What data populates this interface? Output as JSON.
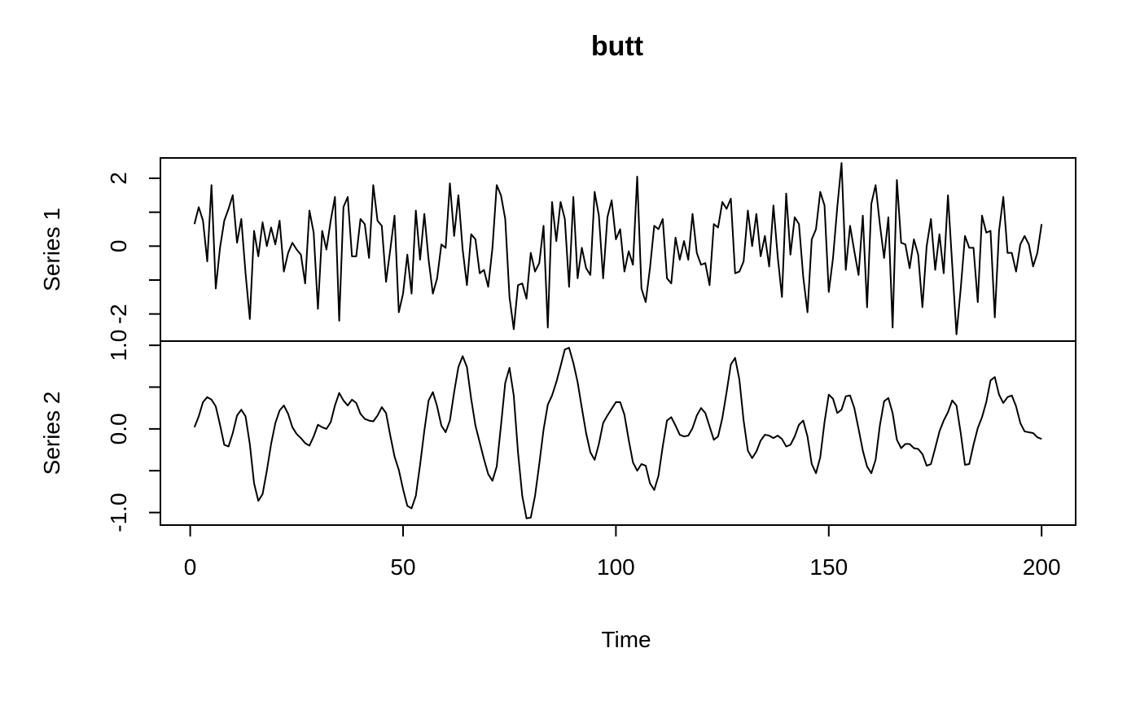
{
  "chart_data": {
    "type": "line",
    "title": "butt",
    "xlabel": "Time",
    "x_start": 1,
    "x_end": 200,
    "xlim": [
      -7,
      208
    ],
    "x_ticks": [
      0,
      50,
      100,
      150,
      200
    ],
    "x_tick_labels": [
      "0",
      "50",
      "100",
      "150",
      "200"
    ],
    "grid": false,
    "legend": "none",
    "line_color": "#000000",
    "panels": [
      {
        "name": "Series 1",
        "ylabel": "Series 1",
        "ylim": [
          -2.8,
          2.6
        ],
        "y_ticks": [
          -2,
          -1,
          0,
          1,
          2
        ],
        "y_tick_labels": [
          "-2",
          "",
          "0",
          "",
          "2"
        ],
        "values": [
          0.65,
          1.15,
          0.75,
          -0.45,
          1.8,
          -1.25,
          -0.05,
          0.75,
          1.1,
          1.5,
          0.1,
          0.8,
          -0.8,
          -2.15,
          0.45,
          -0.3,
          0.7,
          0.0,
          0.55,
          0.05,
          0.75,
          -0.75,
          -0.2,
          0.1,
          -0.1,
          -0.25,
          -1.1,
          1.05,
          0.4,
          -1.85,
          0.45,
          -0.1,
          0.75,
          1.45,
          -2.2,
          1.15,
          1.45,
          -0.3,
          -0.3,
          0.8,
          0.65,
          -0.35,
          1.8,
          0.75,
          0.6,
          -1.05,
          -0.1,
          0.9,
          -1.95,
          -1.4,
          -0.25,
          -1.4,
          1.05,
          -0.4,
          0.95,
          -0.4,
          -1.4,
          -0.95,
          0.05,
          -0.05,
          1.85,
          0.3,
          1.5,
          -0.1,
          -1.15,
          0.35,
          0.2,
          -0.8,
          -0.7,
          -1.2,
          -0.05,
          1.8,
          1.5,
          0.8,
          -1.5,
          -2.45,
          -1.15,
          -1.1,
          -1.55,
          -0.2,
          -0.75,
          -0.5,
          0.6,
          -2.4,
          1.3,
          0.15,
          1.3,
          0.8,
          -1.2,
          1.45,
          -0.95,
          -0.05,
          -0.65,
          -0.85,
          1.6,
          0.9,
          -0.95,
          0.85,
          1.35,
          0.2,
          0.5,
          -0.75,
          -0.15,
          -0.55,
          2.05,
          -1.25,
          -1.65,
          -0.65,
          0.6,
          0.5,
          0.8,
          -0.95,
          -1.1,
          0.25,
          -0.4,
          0.15,
          -0.4,
          0.95,
          -0.2,
          -0.55,
          -0.5,
          -1.15,
          0.65,
          0.55,
          1.3,
          1.1,
          1.4,
          -0.8,
          -0.75,
          -0.45,
          1.05,
          0.0,
          0.95,
          -0.3,
          0.3,
          -0.6,
          1.2,
          -0.3,
          -1.5,
          1.55,
          -0.25,
          0.85,
          0.65,
          -0.9,
          -1.95,
          0.2,
          0.5,
          1.6,
          1.2,
          -1.35,
          -0.35,
          1.15,
          2.45,
          -0.7,
          0.6,
          -0.15,
          -0.85,
          0.9,
          -1.8,
          1.25,
          1.8,
          0.65,
          -0.35,
          0.85,
          -2.4,
          1.95,
          0.1,
          0.05,
          -0.65,
          0.2,
          -0.25,
          -1.8,
          0.0,
          0.8,
          -0.7,
          0.35,
          -0.8,
          1.5,
          -0.55,
          -2.6,
          -1.25,
          0.3,
          -0.05,
          -0.05,
          -1.65,
          0.9,
          0.4,
          0.45,
          -2.1,
          0.45,
          1.45,
          -0.2,
          -0.2,
          -0.75,
          0.05,
          0.3,
          0.05,
          -0.6,
          -0.2,
          0.65
        ]
      },
      {
        "name": "Series 2",
        "ylabel": "Series 2",
        "ylim": [
          -1.15,
          1.05
        ],
        "y_ticks": [
          -1.0,
          -0.5,
          0.0,
          0.5,
          1.0
        ],
        "y_tick_labels": [
          "-1.0",
          "",
          "0.0",
          "",
          "1.0"
        ],
        "values": [
          0.02,
          0.15,
          0.32,
          0.38,
          0.35,
          0.27,
          0.05,
          -0.19,
          -0.21,
          -0.05,
          0.16,
          0.23,
          0.15,
          -0.18,
          -0.65,
          -0.86,
          -0.78,
          -0.5,
          -0.18,
          0.07,
          0.22,
          0.28,
          0.18,
          0.02,
          -0.06,
          -0.11,
          -0.17,
          -0.2,
          -0.09,
          0.05,
          0.02,
          0.0,
          0.08,
          0.28,
          0.43,
          0.34,
          0.28,
          0.35,
          0.31,
          0.18,
          0.12,
          0.1,
          0.09,
          0.16,
          0.26,
          0.19,
          -0.08,
          -0.33,
          -0.49,
          -0.72,
          -0.92,
          -0.95,
          -0.8,
          -0.43,
          -0.02,
          0.34,
          0.44,
          0.27,
          0.04,
          -0.04,
          0.1,
          0.44,
          0.74,
          0.87,
          0.74,
          0.36,
          0.04,
          -0.16,
          -0.36,
          -0.54,
          -0.62,
          -0.45,
          0.04,
          0.55,
          0.73,
          0.4,
          -0.28,
          -0.8,
          -1.07,
          -1.06,
          -0.8,
          -0.42,
          -0.01,
          0.29,
          0.4,
          0.56,
          0.75,
          0.95,
          0.97,
          0.79,
          0.56,
          0.25,
          -0.05,
          -0.28,
          -0.37,
          -0.18,
          0.07,
          0.16,
          0.24,
          0.32,
          0.32,
          0.17,
          -0.13,
          -0.4,
          -0.5,
          -0.42,
          -0.44,
          -0.65,
          -0.73,
          -0.56,
          -0.21,
          0.1,
          0.14,
          0.04,
          -0.07,
          -0.09,
          -0.08,
          0.01,
          0.16,
          0.25,
          0.19,
          0.03,
          -0.13,
          -0.09,
          0.13,
          0.44,
          0.77,
          0.85,
          0.59,
          0.1,
          -0.26,
          -0.35,
          -0.27,
          -0.14,
          -0.07,
          -0.08,
          -0.11,
          -0.08,
          -0.12,
          -0.21,
          -0.19,
          -0.09,
          0.05,
          0.1,
          -0.09,
          -0.42,
          -0.53,
          -0.34,
          0.08,
          0.41,
          0.36,
          0.19,
          0.23,
          0.39,
          0.4,
          0.25,
          0.0,
          -0.26,
          -0.45,
          -0.53,
          -0.37,
          0.04,
          0.33,
          0.37,
          0.19,
          -0.13,
          -0.23,
          -0.18,
          -0.18,
          -0.23,
          -0.24,
          -0.3,
          -0.44,
          -0.42,
          -0.23,
          -0.03,
          0.1,
          0.2,
          0.34,
          0.28,
          -0.05,
          -0.43,
          -0.42,
          -0.19,
          0.01,
          0.14,
          0.32,
          0.58,
          0.62,
          0.41,
          0.31,
          0.38,
          0.4,
          0.27,
          0.07,
          -0.03,
          -0.04,
          -0.05,
          -0.1,
          -0.12
        ]
      }
    ]
  }
}
